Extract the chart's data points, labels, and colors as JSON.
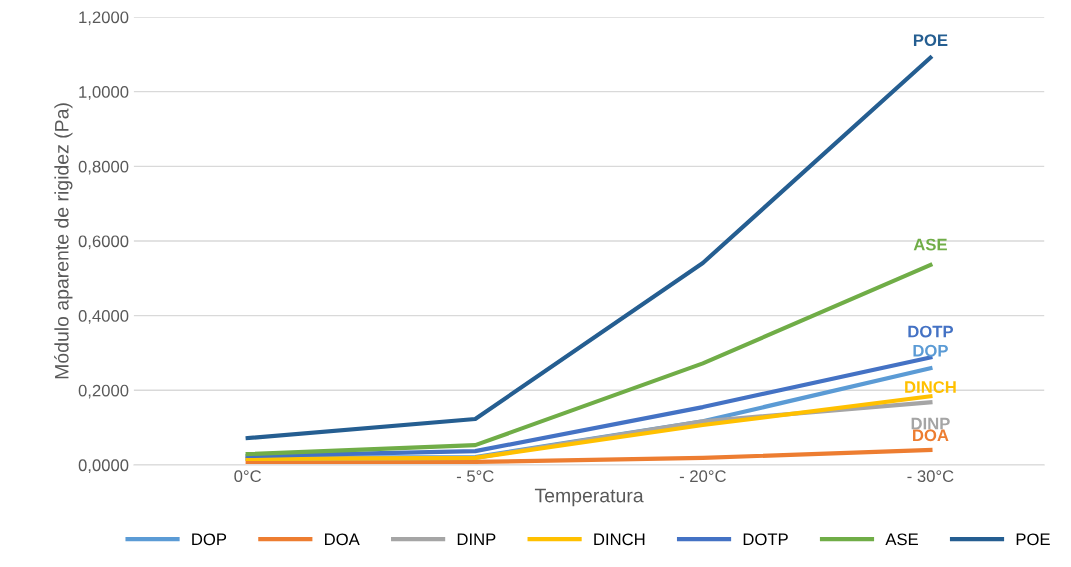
{
  "chart_data": {
    "type": "line",
    "xlabel": "Temperatura",
    "ylabel": "Módulo aparente de rigidez (Pa)",
    "categories": [
      "0°C",
      "- 5°C",
      "- 20°C",
      "- 30°C"
    ],
    "series": [
      {
        "name": "DOP",
        "color": "#5b9bd5",
        "values": [
          0.019,
          0.021,
          0.117,
          0.259
        ]
      },
      {
        "name": "DOA",
        "color": "#ed7d31",
        "values": [
          0.008,
          0.008,
          0.019,
          0.04
        ]
      },
      {
        "name": "DINP",
        "color": "#a5a5a5",
        "values": [
          0.016,
          0.019,
          0.117,
          0.168
        ]
      },
      {
        "name": "DINCH",
        "color": "#ffc000",
        "values": [
          0.016,
          0.019,
          0.107,
          0.184
        ]
      },
      {
        "name": "DOTP",
        "color": "#4472c4",
        "values": [
          0.024,
          0.037,
          0.155,
          0.288
        ]
      },
      {
        "name": "ASE",
        "color": "#70ad47",
        "values": [
          0.029,
          0.053,
          0.272,
          0.536
        ]
      },
      {
        "name": "POE",
        "color": "#255e91",
        "values": [
          0.072,
          0.123,
          0.541,
          1.091
        ]
      }
    ],
    "annotations": [
      {
        "text": "DOP",
        "x": "- 30°C",
        "y": 0.259
      },
      {
        "text": "DOA",
        "x": "- 30°C",
        "y": 0.04
      },
      {
        "text": "DINP",
        "x": "- 30°C",
        "y": 0.168
      },
      {
        "text": "DINCH",
        "x": "- 30°C",
        "y": 0.184
      },
      {
        "text": "DOTP",
        "x": "- 30°C",
        "y": 0.288
      },
      {
        "text": "ASE",
        "x": "- 30°C",
        "y": 0.536
      },
      {
        "text": "POE",
        "x": "- 30°C",
        "y": 1.091
      }
    ],
    "ylim": [
      0,
      1.2
    ],
    "yticks": [
      {
        "value": 0,
        "label": "0,0000"
      },
      {
        "value": 0.2,
        "label": "0,2000"
      },
      {
        "value": 0.4,
        "label": "0,4000"
      },
      {
        "value": 0.6,
        "label": "0,6000"
      },
      {
        "value": 0.8,
        "label": "0,8000"
      },
      {
        "value": 1.0,
        "label": "1,0000"
      },
      {
        "value": 1.2,
        "label": "1,2000"
      }
    ],
    "grid": "y",
    "legend": "bottom",
    "marker": "none",
    "line_style": "solid"
  }
}
